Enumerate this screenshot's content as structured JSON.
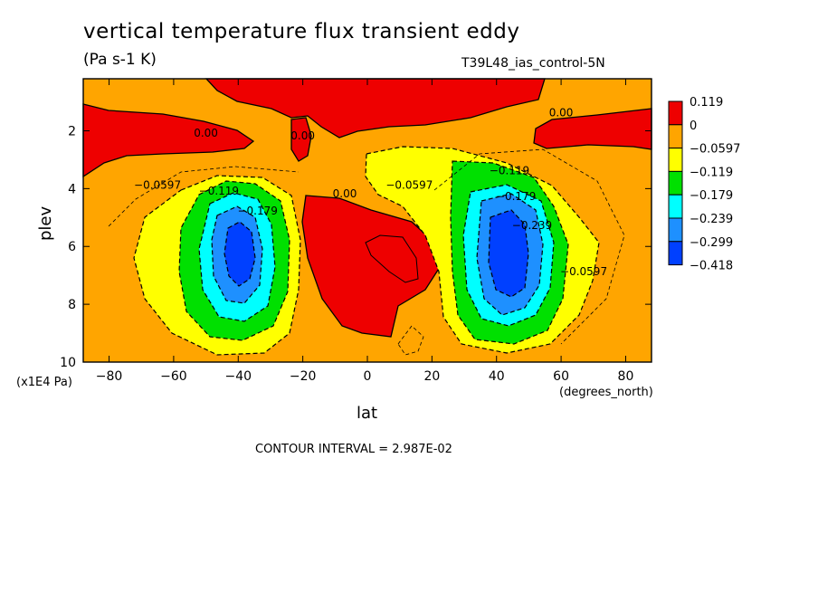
{
  "chart_data": {
    "type": "contour",
    "title": "vertical temperature flux transient eddy",
    "units": "(Pa s-1 K)",
    "run_id": "T39L48_ias_control-5N",
    "xlabel": "lat",
    "xunit": "(degrees_north)",
    "ylabel": "plev",
    "yunit": "(x1E4 Pa)",
    "contour_interval": "CONTOUR INTERVAL = 2.987E-02",
    "xlim": [
      -88,
      88
    ],
    "ylim": [
      10,
      0.2
    ],
    "x_ticks": [
      -80,
      -60,
      -40,
      -20,
      0,
      20,
      40,
      60,
      80
    ],
    "y_ticks": [
      2,
      4,
      6,
      8,
      10
    ],
    "x_tick_labels": [
      "−80",
      "−60",
      "−40",
      "−20",
      "0",
      "20",
      "40",
      "60",
      "80"
    ],
    "y_tick_labels": [
      "2",
      "4",
      "6",
      "8",
      "10"
    ],
    "colorbar": {
      "colors": [
        "#ee0000",
        "#ffa500",
        "#ffff00",
        "#00e000",
        "#00ffff",
        "#1e90ff",
        "#0040ff"
      ],
      "labels": [
        "0.119",
        "0",
        "−0.0597",
        "−0.119",
        "−0.179",
        "−0.239",
        "−0.299",
        "−0.418"
      ]
    },
    "contour_labels": [
      {
        "text": "0.00",
        "x": -50,
        "y": 2.2
      },
      {
        "text": "0.00",
        "x": -20,
        "y": 2.3
      },
      {
        "text": "0.00",
        "x": 60,
        "y": 1.5
      },
      {
        "text": "0.00",
        "x": -7,
        "y": 4.3
      },
      {
        "text": "−0.0597",
        "x": -65,
        "y": 4.0
      },
      {
        "text": "−0.0597",
        "x": 13,
        "y": 4.0
      },
      {
        "text": "−0.0597",
        "x": 67,
        "y": 7.0
      },
      {
        "text": "−0.119",
        "x": -46,
        "y": 4.2
      },
      {
        "text": "−0.119",
        "x": 44,
        "y": 3.5
      },
      {
        "text": "−0.179",
        "x": -34,
        "y": 4.9
      },
      {
        "text": "−0.179",
        "x": 46,
        "y": 4.4
      },
      {
        "text": "−0.239",
        "x": 51,
        "y": 5.4
      }
    ]
  }
}
